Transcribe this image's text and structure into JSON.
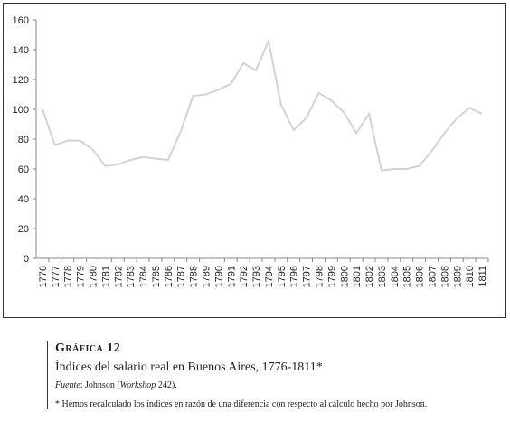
{
  "chart_data": {
    "type": "line",
    "categories": [
      "1776",
      "1777",
      "1778",
      "1779",
      "1780",
      "1781",
      "1782",
      "1783",
      "1784",
      "1785",
      "1786",
      "1787",
      "1788",
      "1789",
      "1790",
      "1791",
      "1792",
      "1793",
      "1794",
      "1795",
      "1796",
      "1797",
      "1798",
      "1799",
      "1800",
      "1801",
      "1802",
      "1803",
      "1804",
      "1805",
      "1806",
      "1807",
      "1808",
      "1809",
      "1810",
      "1811"
    ],
    "values": [
      100,
      76,
      79,
      79,
      73,
      62,
      63,
      66,
      68,
      67,
      66,
      85,
      109,
      110,
      113,
      117,
      131,
      126,
      146,
      103,
      86,
      94,
      111,
      106,
      98,
      84,
      97,
      59,
      60,
      60,
      62,
      72,
      84,
      94,
      101,
      97
    ],
    "color": "#d3d3d3",
    "ylim": [
      0,
      160
    ],
    "yticks": [
      0,
      20,
      40,
      60,
      80,
      100,
      120,
      140,
      160
    ],
    "grid": false
  },
  "caption": {
    "label": "Gráfica 12",
    "title": "Índices del salario real en Buenos Aires, 1776-1811*",
    "source": [
      "Fuente",
      ": Johnson (",
      "Workshop",
      " 242)."
    ],
    "note": "* Hemos recalculado los índices en razón de una diferencia con respecto al cálculo hecho por Johnson."
  }
}
